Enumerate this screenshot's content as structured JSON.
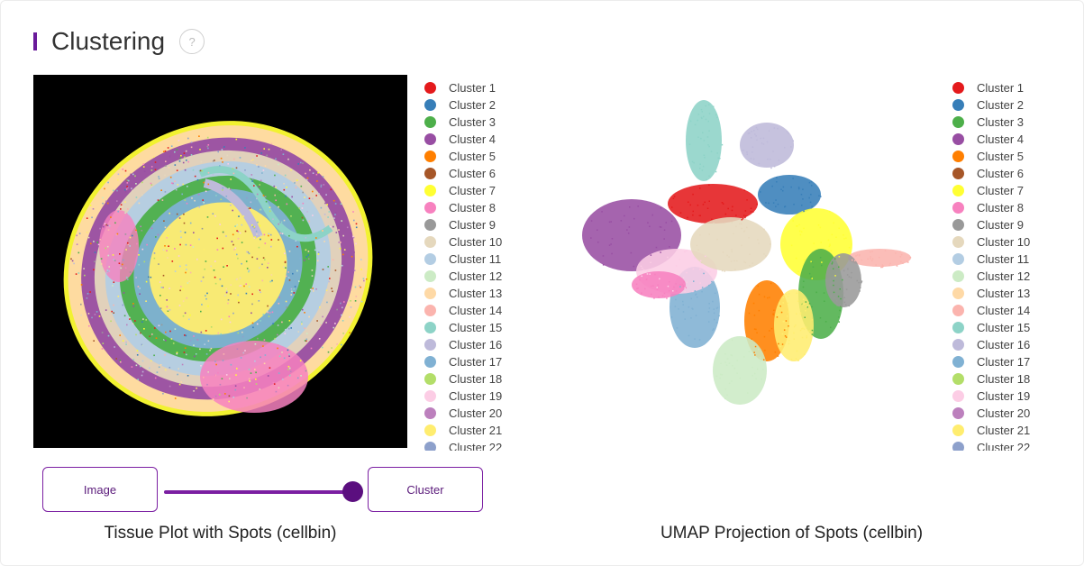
{
  "header": {
    "title": "Clustering",
    "help_icon_glyph": "?",
    "help_icon": "question-circle-icon",
    "accent_color": "#6a1b9a"
  },
  "legend": {
    "items": [
      {
        "label": "Cluster 1",
        "color": "#e41a1c"
      },
      {
        "label": "Cluster 2",
        "color": "#377eb8"
      },
      {
        "label": "Cluster 3",
        "color": "#4daf4a"
      },
      {
        "label": "Cluster 4",
        "color": "#984ea3"
      },
      {
        "label": "Cluster 5",
        "color": "#ff7f00"
      },
      {
        "label": "Cluster 6",
        "color": "#a65628"
      },
      {
        "label": "Cluster 7",
        "color": "#ffff33"
      },
      {
        "label": "Cluster 8",
        "color": "#f781bf"
      },
      {
        "label": "Cluster 9",
        "color": "#999999"
      },
      {
        "label": "Cluster 10",
        "color": "#e5d8bd"
      },
      {
        "label": "Cluster 11",
        "color": "#b3cde3"
      },
      {
        "label": "Cluster 12",
        "color": "#ccebc5"
      },
      {
        "label": "Cluster 13",
        "color": "#fed9a6"
      },
      {
        "label": "Cluster 14",
        "color": "#fbb4ae"
      },
      {
        "label": "Cluster 15",
        "color": "#8dd3c7"
      },
      {
        "label": "Cluster 16",
        "color": "#bebada"
      },
      {
        "label": "Cluster 17",
        "color": "#80b1d3"
      },
      {
        "label": "Cluster 18",
        "color": "#b3de69"
      },
      {
        "label": "Cluster 19",
        "color": "#fccde5"
      },
      {
        "label": "Cluster 20",
        "color": "#bc80bd"
      },
      {
        "label": "Cluster 21",
        "color": "#ffed6f"
      },
      {
        "label": "Cluster 22",
        "color": "#8da0cb"
      }
    ]
  },
  "controls": {
    "image_label": "Image",
    "cluster_label": "Cluster",
    "slider_value": 1.0,
    "slider_color": "#7b1fa2"
  },
  "captions": {
    "tissue": "Tissue Plot with Spots (cellbin)",
    "umap": "UMAP Projection of Spots (cellbin)"
  }
}
